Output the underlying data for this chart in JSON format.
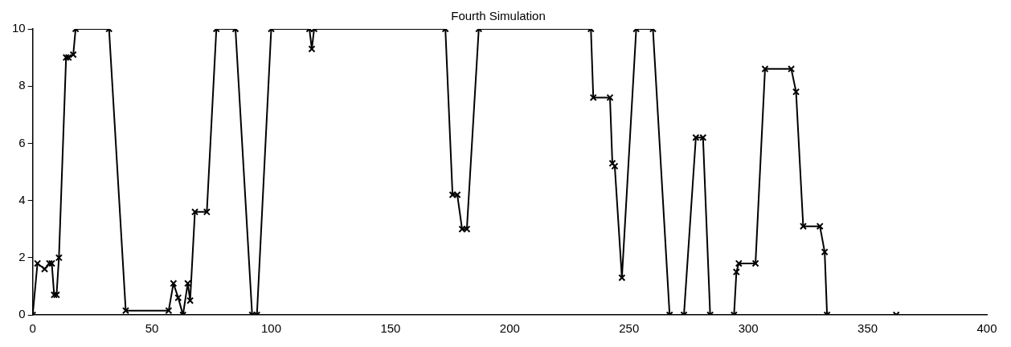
{
  "chart_data": {
    "type": "line",
    "title": "Fourth Simulation",
    "series": [
      {
        "color": "#000000",
        "x": [
          0,
          2,
          5,
          7,
          8,
          9,
          10,
          11,
          14,
          15,
          17,
          18,
          32,
          39,
          57,
          59,
          61,
          63,
          65,
          66,
          68,
          73,
          77,
          85,
          92,
          94,
          100,
          116,
          117,
          118,
          173,
          176,
          178,
          180,
          182,
          187,
          234,
          235,
          242,
          243,
          244,
          247,
          253,
          260,
          267,
          273,
          278,
          281,
          284,
          294,
          295,
          296,
          303,
          307,
          318,
          320,
          323,
          330,
          332,
          333,
          362
        ],
        "values": [
          0,
          1.8,
          1.6,
          1.8,
          1.8,
          0.7,
          0.7,
          2,
          9,
          9,
          9.1,
          10,
          10,
          0.15,
          0.15,
          1.1,
          0.6,
          0,
          1.1,
          0.5,
          3.6,
          3.6,
          10,
          10,
          0,
          0,
          10,
          10,
          9.3,
          10,
          10,
          4.2,
          4.2,
          3,
          3,
          10,
          10,
          7.6,
          7.6,
          5.3,
          5.2,
          1.3,
          10,
          10,
          0,
          0,
          6.2,
          6.2,
          0,
          0,
          1.5,
          1.8,
          1.8,
          8.6,
          8.6,
          7.8,
          3.1,
          3.1,
          2.2,
          0,
          0
        ]
      }
    ],
    "xlim": [
      0,
      400
    ],
    "xticks": [
      0,
      50,
      100,
      150,
      200,
      250,
      300,
      350,
      400
    ],
    "ylim": [
      0,
      10
    ],
    "yticks": [
      0,
      2,
      4,
      6,
      8,
      10
    ],
    "grid": false,
    "legend": false,
    "marker": "cross",
    "line_style": "solid"
  }
}
